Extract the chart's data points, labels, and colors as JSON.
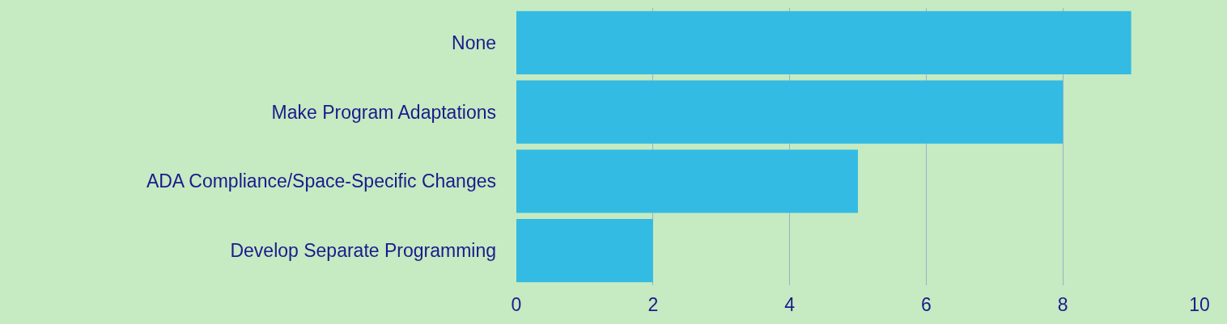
{
  "chart_data": {
    "type": "bar",
    "orientation": "horizontal",
    "categories": [
      "None",
      "Make Program Adaptations",
      "ADA Compliance/Space-Specific Changes",
      "Develop Separate Programming"
    ],
    "values": [
      9,
      8,
      5,
      2
    ],
    "color": "#33bbe3",
    "xlim": [
      0,
      10
    ],
    "xticks": [
      0,
      2,
      4,
      6,
      8,
      10
    ],
    "grid": "x",
    "legend": false
  }
}
